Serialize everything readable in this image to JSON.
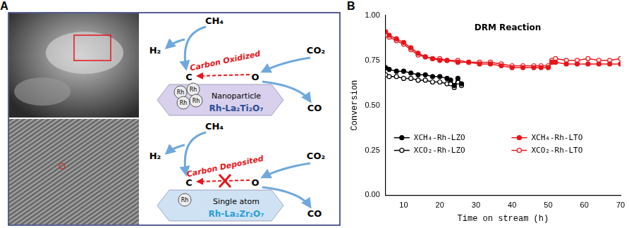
{
  "panel_labels": [
    "A",
    "B"
  ],
  "panel_a": {
    "schemes": [
      {
        "reactant": "CH₄",
        "hydrogen": "H₂",
        "carbon": "C",
        "arrow_label": "Carbon Oxidized",
        "oxidant": "CO₂",
        "oxygen": "O",
        "product": "CO",
        "rh": [
          "Rh",
          "Rh",
          "Rh",
          "Rh"
        ],
        "site": "Nanoparticle",
        "support": "Rh-La₂Ti₂O₇",
        "blocked": false
      },
      {
        "reactant": "CH₄",
        "hydrogen": "H₂",
        "carbon": "C",
        "arrow_label": "Carbon Deposited",
        "oxidant": "CO₂",
        "oxygen": "O",
        "product": "CO",
        "rh": [
          "Rh"
        ],
        "site": "Single atom",
        "support": "Rh-La₂Zr₂O₇",
        "blocked": true
      }
    ]
  },
  "chart_data": {
    "type": "line",
    "title": "DRM Reaction",
    "x_label": "Time on stream (h)",
    "y_label": "Conversion",
    "xlim": [
      5,
      70
    ],
    "xticks": [
      10,
      20,
      30,
      40,
      50,
      60,
      70
    ],
    "ylim": [
      0,
      1
    ],
    "yticks": [
      {
        "value": 0,
        "label": "0.00"
      },
      {
        "value": 0.25,
        "label": "0.25"
      },
      {
        "value": 0.5,
        "label": "0.50"
      },
      {
        "value": 0.75,
        "label": "0.75"
      },
      {
        "value": 1,
        "label": "1.00"
      }
    ],
    "grid": false,
    "legend": "bottom",
    "series": [
      {
        "name": "XCH₄-Rh-LZO",
        "color": "#000000",
        "marker": "circle",
        "line_style": "solid",
        "x": [
          5,
          6,
          8,
          10,
          12,
          14,
          16,
          18,
          20,
          22,
          23,
          24,
          25,
          26
        ],
        "values": [
          0.71,
          0.7,
          0.69,
          0.69,
          0.68,
          0.67,
          0.67,
          0.66,
          0.66,
          0.65,
          0.64,
          0.61,
          0.65,
          0.62
        ]
      },
      {
        "name": "XCO₂-Rh-LZO",
        "color": "#000000",
        "marker": "open_circle",
        "line_style": "solid",
        "x": [
          5,
          6,
          8,
          10,
          12,
          14,
          16,
          18,
          20,
          22,
          23,
          24,
          25,
          26
        ],
        "values": [
          0.67,
          0.66,
          0.66,
          0.65,
          0.65,
          0.64,
          0.64,
          0.63,
          0.63,
          0.62,
          0.62,
          0.6,
          0.63,
          0.61
        ]
      },
      {
        "name": "XCH₄-Rh-LTO",
        "color": "#e8141a",
        "marker": "circle",
        "line_style": "solid",
        "x": [
          5,
          6,
          8,
          10,
          12,
          14,
          16,
          18,
          20,
          22,
          25,
          28,
          31,
          34,
          37,
          40,
          43,
          46,
          48,
          50,
          51,
          52,
          55,
          58,
          61,
          64,
          67,
          70
        ],
        "values": [
          0.91,
          0.89,
          0.87,
          0.85,
          0.82,
          0.79,
          0.77,
          0.76,
          0.75,
          0.75,
          0.74,
          0.74,
          0.73,
          0.73,
          0.72,
          0.71,
          0.71,
          0.71,
          0.71,
          0.71,
          0.74,
          0.74,
          0.73,
          0.73,
          0.73,
          0.73,
          0.73,
          0.73
        ]
      },
      {
        "name": "XCO₂-Rh-LTO",
        "color": "#e8141a",
        "marker": "open_circle",
        "line_style": "solid",
        "x": [
          5,
          6,
          8,
          10,
          12,
          14,
          16,
          18,
          20,
          22,
          25,
          28,
          31,
          34,
          37,
          40,
          43,
          46,
          48,
          50,
          51,
          52,
          55,
          58,
          61,
          64,
          67,
          70
        ],
        "values": [
          0.89,
          0.88,
          0.86,
          0.84,
          0.81,
          0.78,
          0.77,
          0.76,
          0.76,
          0.75,
          0.75,
          0.74,
          0.74,
          0.74,
          0.73,
          0.72,
          0.72,
          0.72,
          0.72,
          0.72,
          0.75,
          0.76,
          0.75,
          0.75,
          0.76,
          0.75,
          0.75,
          0.76
        ]
      }
    ]
  }
}
